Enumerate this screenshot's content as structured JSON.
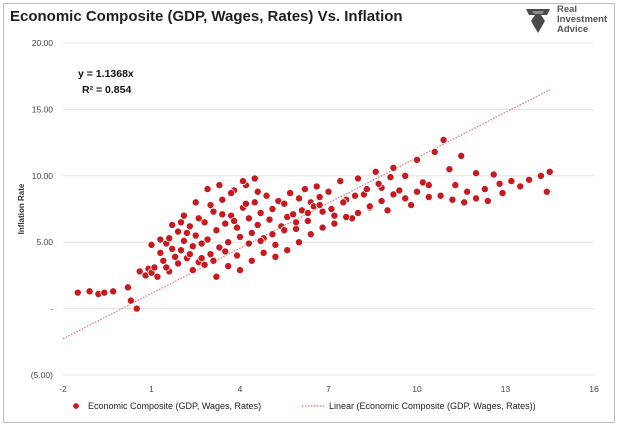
{
  "title": "Economic Composite (GDP, Wages, Rates) Vs. Inflation",
  "logo": {
    "line1": "Real",
    "line2": "Investment",
    "line3": "Advice"
  },
  "colors": {
    "marker": "#c8191e",
    "marker_edge": "#ffffff",
    "trend": "#e07070",
    "grid": "#e3e3e3"
  },
  "chart_data": {
    "type": "scatter",
    "title": "Economic Composite (GDP, Wages, Rates) Vs. Inflation",
    "xlabel": "",
    "ylabel": "Inflation Rate",
    "xlim": [
      -2,
      16
    ],
    "ylim": [
      -5,
      20
    ],
    "x_ticks": [
      "-2",
      "1",
      "4",
      "7",
      "10",
      "13",
      "16"
    ],
    "y_ticks": [
      "(5.00)",
      "-",
      "5.00",
      "10.00",
      "15.00",
      "20.00"
    ],
    "y_tick_values": [
      -5,
      0,
      5,
      10,
      15,
      20
    ],
    "grid": "horizontal",
    "legend_position": "bottom",
    "trendline": {
      "type": "linear",
      "slope": 1.1368,
      "x_range": [
        -2,
        14.5
      ],
      "equation": "y = 1.1368x",
      "r_squared": "R² = 0.854"
    },
    "series": [
      {
        "name": "Economic Composite (GDP, Wages, Rates)",
        "points": [
          [
            -1.5,
            1.2
          ],
          [
            -1.1,
            1.3
          ],
          [
            -0.8,
            1.1
          ],
          [
            -0.6,
            1.2
          ],
          [
            -0.3,
            1.3
          ],
          [
            0.2,
            1.6
          ],
          [
            0.3,
            0.6
          ],
          [
            0.5,
            0.0
          ],
          [
            0.6,
            2.8
          ],
          [
            0.8,
            2.5
          ],
          [
            0.9,
            3.0
          ],
          [
            1.0,
            2.7
          ],
          [
            1.1,
            3.1
          ],
          [
            1.2,
            2.4
          ],
          [
            1.0,
            4.8
          ],
          [
            1.3,
            4.2
          ],
          [
            1.4,
            3.6
          ],
          [
            1.5,
            4.9
          ],
          [
            1.6,
            5.3
          ],
          [
            1.7,
            4.5
          ],
          [
            1.8,
            3.9
          ],
          [
            1.9,
            5.8
          ],
          [
            2.0,
            4.4
          ],
          [
            2.1,
            5.1
          ],
          [
            2.2,
            3.8
          ],
          [
            2.3,
            6.2
          ],
          [
            2.4,
            4.7
          ],
          [
            2.5,
            5.5
          ],
          [
            2.6,
            3.5
          ],
          [
            2.7,
            4.9
          ],
          [
            2.8,
            6.5
          ],
          [
            2.9,
            5.2
          ],
          [
            3.0,
            4.1
          ],
          [
            3.1,
            7.3
          ],
          [
            3.2,
            5.9
          ],
          [
            3.3,
            4.6
          ],
          [
            3.4,
            8.2
          ],
          [
            3.5,
            6.4
          ],
          [
            3.6,
            5.0
          ],
          [
            3.7,
            7.0
          ],
          [
            3.8,
            8.9
          ],
          [
            3.9,
            6.1
          ],
          [
            4.0,
            5.4
          ],
          [
            4.1,
            7.6
          ],
          [
            4.2,
            9.3
          ],
          [
            4.3,
            6.8
          ],
          [
            4.4,
            5.7
          ],
          [
            4.5,
            8.0
          ],
          [
            4.6,
            6.3
          ],
          [
            4.7,
            7.2
          ],
          [
            4.8,
            5.3
          ],
          [
            4.9,
            8.5
          ],
          [
            5.0,
            6.7
          ],
          [
            5.1,
            7.5
          ],
          [
            5.2,
            4.8
          ],
          [
            5.3,
            8.1
          ],
          [
            5.4,
            6.2
          ],
          [
            5.5,
            7.9
          ],
          [
            5.6,
            6.9
          ],
          [
            5.7,
            8.7
          ],
          [
            5.8,
            7.1
          ],
          [
            5.9,
            6.0
          ],
          [
            6.0,
            8.3
          ],
          [
            6.1,
            7.4
          ],
          [
            6.2,
            9.0
          ],
          [
            6.3,
            6.6
          ],
          [
            6.4,
            8.0
          ],
          [
            6.5,
            7.7
          ],
          [
            6.6,
            9.2
          ],
          [
            6.7,
            8.4
          ],
          [
            6.8,
            7.3
          ],
          [
            7.0,
            8.8
          ],
          [
            7.2,
            7.0
          ],
          [
            7.4,
            9.6
          ],
          [
            7.6,
            8.2
          ],
          [
            7.8,
            6.8
          ],
          [
            8.0,
            9.8
          ],
          [
            8.2,
            8.6
          ],
          [
            8.4,
            7.6
          ],
          [
            8.6,
            10.3
          ],
          [
            8.8,
            9.1
          ],
          [
            9.0,
            7.4
          ],
          [
            9.2,
            10.6
          ],
          [
            9.4,
            8.9
          ],
          [
            9.6,
            10.0
          ],
          [
            9.8,
            7.8
          ],
          [
            10.0,
            11.2
          ],
          [
            10.2,
            9.5
          ],
          [
            10.4,
            8.4
          ],
          [
            10.6,
            11.8
          ],
          [
            10.9,
            12.7
          ],
          [
            11.1,
            10.5
          ],
          [
            11.3,
            9.3
          ],
          [
            11.5,
            11.5
          ],
          [
            11.7,
            8.8
          ],
          [
            12.0,
            10.2
          ],
          [
            12.3,
            9.0
          ],
          [
            12.6,
            10.1
          ],
          [
            12.9,
            8.7
          ],
          [
            13.2,
            9.6
          ],
          [
            13.5,
            9.2
          ],
          [
            13.8,
            9.7
          ],
          [
            14.2,
            10.0
          ],
          [
            14.5,
            10.3
          ],
          [
            14.4,
            8.8
          ],
          [
            1.6,
            2.8
          ],
          [
            2.0,
            6.5
          ],
          [
            2.4,
            2.9
          ],
          [
            2.8,
            3.3
          ],
          [
            3.2,
            2.4
          ],
          [
            3.6,
            3.2
          ],
          [
            4.0,
            2.9
          ],
          [
            4.4,
            3.6
          ],
          [
            4.8,
            4.2
          ],
          [
            5.2,
            3.9
          ],
          [
            5.6,
            4.4
          ],
          [
            6.0,
            5.0
          ],
          [
            6.4,
            5.6
          ],
          [
            6.8,
            6.1
          ],
          [
            7.2,
            6.4
          ],
          [
            7.6,
            6.9
          ],
          [
            8.0,
            7.2
          ],
          [
            8.4,
            7.7
          ],
          [
            8.8,
            8.1
          ],
          [
            9.2,
            8.6
          ],
          [
            9.6,
            8.3
          ],
          [
            10.0,
            8.8
          ],
          [
            10.4,
            9.3
          ],
          [
            10.8,
            8.5
          ],
          [
            11.2,
            8.2
          ],
          [
            11.6,
            8.0
          ],
          [
            12.0,
            8.3
          ],
          [
            12.4,
            8.1
          ],
          [
            12.8,
            9.4
          ],
          [
            2.1,
            7.0
          ],
          [
            2.5,
            8.0
          ],
          [
            2.9,
            9.0
          ],
          [
            3.3,
            9.3
          ],
          [
            3.7,
            8.7
          ],
          [
            4.1,
            9.6
          ],
          [
            4.5,
            9.8
          ],
          [
            1.3,
            5.2
          ],
          [
            1.7,
            6.3
          ],
          [
            2.2,
            5.7
          ],
          [
            2.6,
            6.8
          ],
          [
            3.0,
            7.8
          ],
          [
            3.4,
            7.1
          ],
          [
            3.8,
            6.6
          ],
          [
            4.2,
            7.9
          ],
          [
            4.6,
            8.8
          ],
          [
            1.5,
            3.1
          ],
          [
            1.9,
            3.4
          ],
          [
            2.3,
            4.1
          ],
          [
            2.7,
            3.8
          ],
          [
            3.1,
            3.6
          ],
          [
            3.5,
            4.3
          ],
          [
            3.9,
            4.0
          ],
          [
            4.3,
            4.9
          ],
          [
            4.7,
            5.1
          ],
          [
            5.1,
            5.6
          ],
          [
            5.5,
            5.9
          ],
          [
            5.9,
            6.5
          ],
          [
            6.3,
            7.2
          ],
          [
            6.7,
            7.8
          ],
          [
            7.1,
            7.5
          ],
          [
            7.5,
            8.0
          ],
          [
            7.9,
            8.5
          ],
          [
            8.3,
            9.0
          ],
          [
            8.7,
            9.4
          ],
          [
            9.1,
            9.9
          ]
        ]
      }
    ]
  },
  "legend": {
    "items": [
      {
        "label": "Economic Composite (GDP, Wages, Rates)"
      },
      {
        "label": "Linear (Economic Composite (GDP, Wages, Rates))"
      }
    ]
  }
}
